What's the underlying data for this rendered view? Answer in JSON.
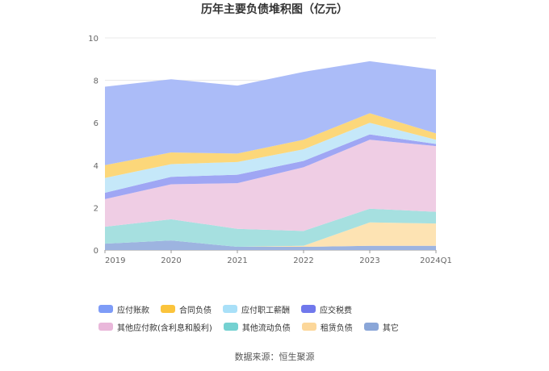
{
  "chart_data": {
    "type": "area",
    "stacked": true,
    "title": "历年主要负债堆积图（亿元）",
    "categories": [
      "2019",
      "2020",
      "2021",
      "2022",
      "2023",
      "2024Q1"
    ],
    "ylim": [
      0,
      10
    ],
    "yticks": [
      "0",
      "2",
      "4",
      "6",
      "8",
      "10"
    ],
    "grid": true,
    "legend_position": "bottom",
    "series": [
      {
        "name": "其它",
        "color": "#9db4e0",
        "values": [
          0.3,
          0.45,
          0.15,
          0.15,
          0.2,
          0.2
        ]
      },
      {
        "name": "租赁负债",
        "color": "#fde3b3",
        "values": [
          0.0,
          0.0,
          0.0,
          0.05,
          1.1,
          1.05
        ]
      },
      {
        "name": "其他流动负债",
        "color": "#a6e0e0",
        "values": [
          0.8,
          1.0,
          0.85,
          0.7,
          0.65,
          0.55
        ]
      },
      {
        "name": "其他应付款(含利息和股利)",
        "color": "#efcde4",
        "values": [
          1.3,
          1.65,
          2.15,
          3.0,
          3.25,
          3.1
        ]
      },
      {
        "name": "应交税费",
        "color": "#9fa6f4",
        "values": [
          0.3,
          0.35,
          0.4,
          0.3,
          0.25,
          0.1
        ]
      },
      {
        "name": "应付职工薪酬",
        "color": "#c5e8f9",
        "values": [
          0.7,
          0.6,
          0.6,
          0.55,
          0.55,
          0.2
        ]
      },
      {
        "name": "合同负债",
        "color": "#fcd77a",
        "values": [
          0.6,
          0.55,
          0.4,
          0.45,
          0.45,
          0.3
        ]
      },
      {
        "name": "应付账款",
        "color": "#abbcf8",
        "values": [
          3.7,
          3.45,
          3.2,
          3.2,
          2.45,
          3.0
        ]
      }
    ],
    "legend": [
      {
        "name": "应付账款",
        "color": "#7e9cf7"
      },
      {
        "name": "合同负债",
        "color": "#fbc43c"
      },
      {
        "name": "应付职工薪酬",
        "color": "#a9e0f8"
      },
      {
        "name": "应交税费",
        "color": "#7078ec"
      },
      {
        "name": "其他应付款(含利息和股利)",
        "color": "#e9b7da"
      },
      {
        "name": "其他流动负债",
        "color": "#74d1d1"
      },
      {
        "name": "租赁负债",
        "color": "#fcd79a"
      },
      {
        "name": "其它",
        "color": "#8aa6d8"
      }
    ],
    "source": "数据来源：恒生聚源"
  }
}
